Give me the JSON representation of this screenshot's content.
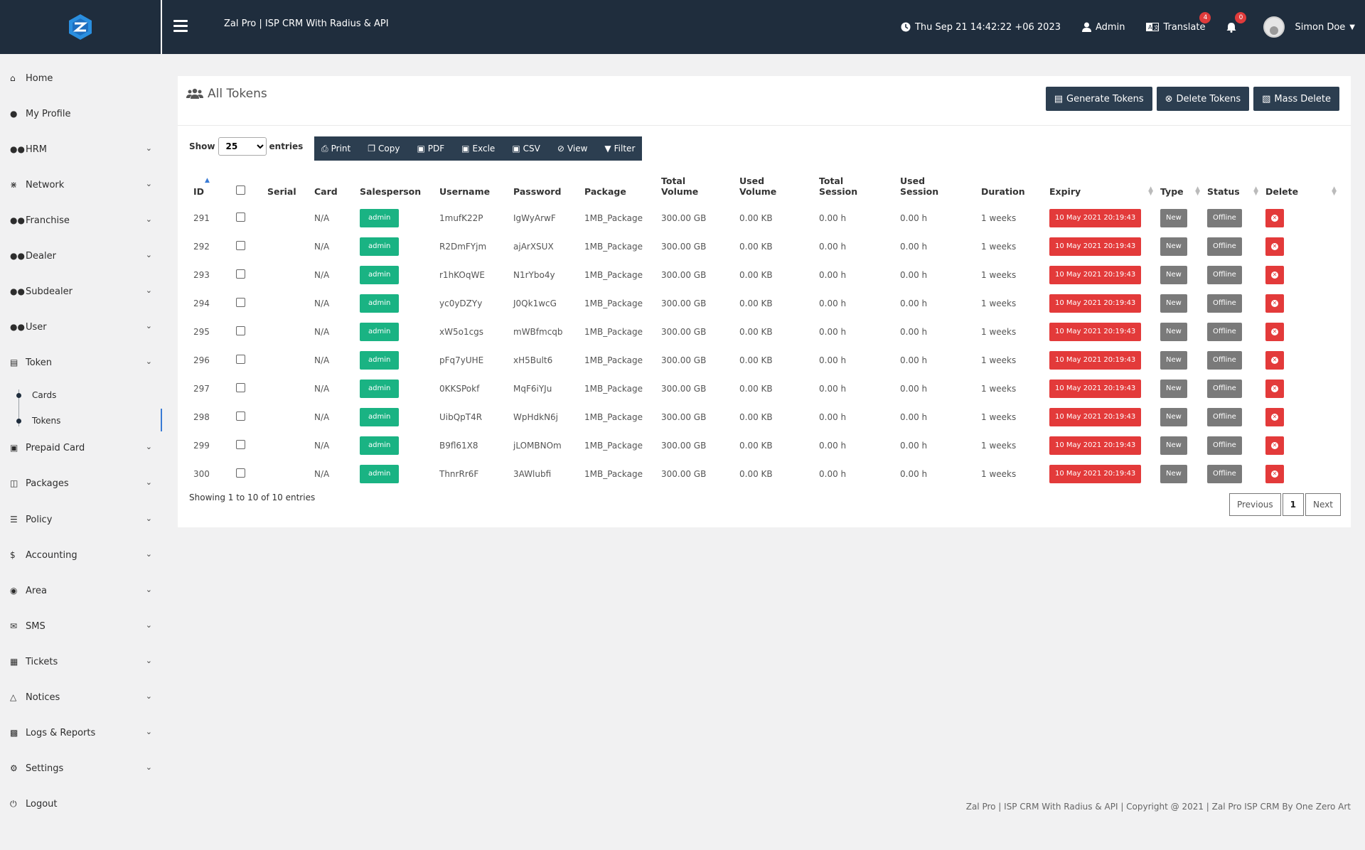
{
  "topbar": {
    "title": "Zal Pro | ISP CRM With Radius & API",
    "datetime": "Thu Sep 21 14:42:22 +06 2023",
    "admin_label": "Admin",
    "translate_label": "Translate",
    "translate_badge": "4",
    "notif_badge": "0",
    "user_name": "Simon Doe"
  },
  "sidebar": {
    "items": [
      {
        "label": "Home",
        "icon": "home-icon"
      },
      {
        "label": "My Profile",
        "icon": "user-icon"
      },
      {
        "label": "HRM",
        "icon": "users-icon"
      },
      {
        "label": "Network",
        "icon": "network-icon"
      },
      {
        "label": "Franchise",
        "icon": "users-icon"
      },
      {
        "label": "Dealer",
        "icon": "users-icon"
      },
      {
        "label": "Subdealer",
        "icon": "users-icon"
      },
      {
        "label": "User",
        "icon": "users-icon"
      },
      {
        "label": "Token",
        "icon": "token-icon"
      },
      {
        "label": "Prepaid Card",
        "icon": "card-icon"
      },
      {
        "label": "Packages",
        "icon": "packages-icon"
      },
      {
        "label": "Policy",
        "icon": "policy-icon"
      },
      {
        "label": "Accounting",
        "icon": "dollar-icon"
      },
      {
        "label": "Area",
        "icon": "map-pin-icon"
      },
      {
        "label": "SMS",
        "icon": "chat-icon"
      },
      {
        "label": "Tickets",
        "icon": "ticket-icon"
      },
      {
        "label": "Notices",
        "icon": "bell-icon"
      },
      {
        "label": "Logs & Reports",
        "icon": "book-icon"
      },
      {
        "label": "Settings",
        "icon": "cogs-icon"
      },
      {
        "label": "Logout",
        "icon": "logout-icon"
      }
    ],
    "token_sub": [
      "Cards",
      "Tokens"
    ]
  },
  "page": {
    "title": "All Tokens",
    "buttons": {
      "generate": "Generate Tokens",
      "delete": "Delete Tokens",
      "mass_delete": "Mass Delete"
    },
    "show_label": "Show",
    "entries_value": "25",
    "entries_label": "entries",
    "dt_buttons": [
      "Print",
      "Copy",
      "PDF",
      "Excle",
      "CSV",
      "View",
      "Filter"
    ],
    "columns": [
      "ID",
      "",
      "Serial",
      "Card",
      "Salesperson",
      "Username",
      "Password",
      "Package",
      "Total Volume",
      "Used Volume",
      "Total Session",
      "Used Session",
      "Duration",
      "Expiry",
      "Type",
      "Status",
      "Delete"
    ],
    "rows": [
      {
        "id": "291",
        "serial": "",
        "card": "N/A",
        "salesperson": "admin",
        "username": "1mufK22P",
        "password": "IgWyArwF",
        "package": "1MB_Package",
        "total_volume": "300.00 GB",
        "used_volume": "0.00 KB",
        "total_session": "0.00 h",
        "used_session": "0.00 h",
        "duration": "1 weeks",
        "expiry": "10 May 2021 20:19:43",
        "type": "New",
        "status": "Offline"
      },
      {
        "id": "292",
        "serial": "",
        "card": "N/A",
        "salesperson": "admin",
        "username": "R2DmFYjm",
        "password": "ajArXSUX",
        "package": "1MB_Package",
        "total_volume": "300.00 GB",
        "used_volume": "0.00 KB",
        "total_session": "0.00 h",
        "used_session": "0.00 h",
        "duration": "1 weeks",
        "expiry": "10 May 2021 20:19:43",
        "type": "New",
        "status": "Offline"
      },
      {
        "id": "293",
        "serial": "",
        "card": "N/A",
        "salesperson": "admin",
        "username": "r1hKOqWE",
        "password": "N1rYbo4y",
        "package": "1MB_Package",
        "total_volume": "300.00 GB",
        "used_volume": "0.00 KB",
        "total_session": "0.00 h",
        "used_session": "0.00 h",
        "duration": "1 weeks",
        "expiry": "10 May 2021 20:19:43",
        "type": "New",
        "status": "Offline"
      },
      {
        "id": "294",
        "serial": "",
        "card": "N/A",
        "salesperson": "admin",
        "username": "yc0yDZYy",
        "password": "J0Qk1wcG",
        "package": "1MB_Package",
        "total_volume": "300.00 GB",
        "used_volume": "0.00 KB",
        "total_session": "0.00 h",
        "used_session": "0.00 h",
        "duration": "1 weeks",
        "expiry": "10 May 2021 20:19:43",
        "type": "New",
        "status": "Offline"
      },
      {
        "id": "295",
        "serial": "",
        "card": "N/A",
        "salesperson": "admin",
        "username": "xW5o1cgs",
        "password": "mWBfmcqb",
        "package": "1MB_Package",
        "total_volume": "300.00 GB",
        "used_volume": "0.00 KB",
        "total_session": "0.00 h",
        "used_session": "0.00 h",
        "duration": "1 weeks",
        "expiry": "10 May 2021 20:19:43",
        "type": "New",
        "status": "Offline"
      },
      {
        "id": "296",
        "serial": "",
        "card": "N/A",
        "salesperson": "admin",
        "username": "pFq7yUHE",
        "password": "xH5Bult6",
        "package": "1MB_Package",
        "total_volume": "300.00 GB",
        "used_volume": "0.00 KB",
        "total_session": "0.00 h",
        "used_session": "0.00 h",
        "duration": "1 weeks",
        "expiry": "10 May 2021 20:19:43",
        "type": "New",
        "status": "Offline"
      },
      {
        "id": "297",
        "serial": "",
        "card": "N/A",
        "salesperson": "admin",
        "username": "0KKSPokf",
        "password": "MqF6iYJu",
        "package": "1MB_Package",
        "total_volume": "300.00 GB",
        "used_volume": "0.00 KB",
        "total_session": "0.00 h",
        "used_session": "0.00 h",
        "duration": "1 weeks",
        "expiry": "10 May 2021 20:19:43",
        "type": "New",
        "status": "Offline"
      },
      {
        "id": "298",
        "serial": "",
        "card": "N/A",
        "salesperson": "admin",
        "username": "UibQpT4R",
        "password": "WpHdkN6j",
        "package": "1MB_Package",
        "total_volume": "300.00 GB",
        "used_volume": "0.00 KB",
        "total_session": "0.00 h",
        "used_session": "0.00 h",
        "duration": "1 weeks",
        "expiry": "10 May 2021 20:19:43",
        "type": "New",
        "status": "Offline"
      },
      {
        "id": "299",
        "serial": "",
        "card": "N/A",
        "salesperson": "admin",
        "username": "B9fl61X8",
        "password": "jLOMBNOm",
        "package": "1MB_Package",
        "total_volume": "300.00 GB",
        "used_volume": "0.00 KB",
        "total_session": "0.00 h",
        "used_session": "0.00 h",
        "duration": "1 weeks",
        "expiry": "10 May 2021 20:19:43",
        "type": "New",
        "status": "Offline"
      },
      {
        "id": "300",
        "serial": "",
        "card": "N/A",
        "salesperson": "admin",
        "username": "ThnrRr6F",
        "password": "3AWlubfi",
        "package": "1MB_Package",
        "total_volume": "300.00 GB",
        "used_volume": "0.00 KB",
        "total_session": "0.00 h",
        "used_session": "0.00 h",
        "duration": "1 weeks",
        "expiry": "10 May 2021 20:19:43",
        "type": "New",
        "status": "Offline"
      }
    ],
    "showing": "Showing 1 to 10 of 10 entries",
    "pagination": {
      "previous": "Previous",
      "current": "1",
      "next": "Next"
    }
  },
  "footer": "Zal Pro | ISP CRM With Radius & API | Copyright @ 2021 | Zal Pro ISP CRM By One Zero Art",
  "colors": {
    "topbar": "#1f2d3d",
    "button": "#2c3e50",
    "green": "#1ab383",
    "red": "#e33a3a",
    "gray": "#7a7a7a"
  }
}
